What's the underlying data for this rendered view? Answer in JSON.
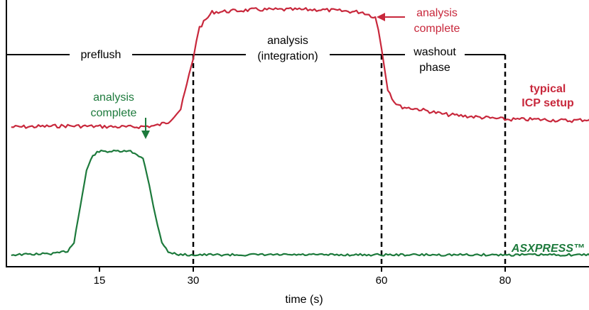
{
  "chart_data": {
    "type": "line",
    "title": "",
    "xlabel": "time (s)",
    "ylabel": "",
    "xlim": [
      1,
      96
    ],
    "ylim": [
      0,
      100
    ],
    "x_ticks": [
      15,
      30,
      60,
      80
    ],
    "x_tick_labels": [
      "15",
      "30",
      "60",
      "80"
    ],
    "grid": false,
    "phases": [
      {
        "label_lines": [
          "preflush"
        ],
        "start": 1,
        "end": 30
      },
      {
        "label_lines": [
          "analysis",
          "(integration)"
        ],
        "start": 30,
        "end": 60
      },
      {
        "label_lines": [
          "washout",
          "phase"
        ],
        "start": 60,
        "end": 80
      }
    ],
    "phase_level": 83,
    "series": [
      {
        "name_lines": [
          "typical",
          "ICP setup"
        ],
        "color": "#c8283c",
        "x": [
          1,
          10,
          20,
          24,
          26,
          28,
          29,
          30,
          30.5,
          31,
          33,
          40,
          50,
          57,
          59,
          59.5,
          60,
          60.5,
          61,
          62,
          63,
          66,
          70,
          75,
          80,
          85,
          90,
          93,
          95,
          96
        ],
        "y": [
          53,
          53.5,
          53,
          53.5,
          55,
          60,
          70,
          80,
          87,
          92,
          98,
          99,
          99,
          98,
          96,
          91,
          84,
          76,
          68,
          63,
          61,
          60,
          58,
          57,
          56,
          56,
          55.5,
          56,
          57,
          53
        ]
      },
      {
        "name_lines": [
          "ASXPRESS™"
        ],
        "color": "#1d7a3c",
        "x": [
          1,
          8,
          10,
          11,
          12,
          13,
          14,
          15,
          20,
          22,
          23,
          24,
          25,
          26,
          28,
          40,
          60,
          80,
          96
        ],
        "y": [
          3,
          3.5,
          4.5,
          8,
          22,
          36,
          42,
          43.5,
          43.5,
          41,
          30,
          18,
          8,
          4,
          3,
          3,
          3,
          3,
          3
        ]
      }
    ],
    "annotations": [
      {
        "text_lines": [
          "analysis",
          "complete"
        ],
        "series": "typical ICP setup",
        "x": 58.5,
        "y": 98
      },
      {
        "text_lines": [
          "analysis",
          "complete"
        ],
        "series": "ASXPRESS™",
        "x": 22.5,
        "y": 43
      }
    ]
  }
}
